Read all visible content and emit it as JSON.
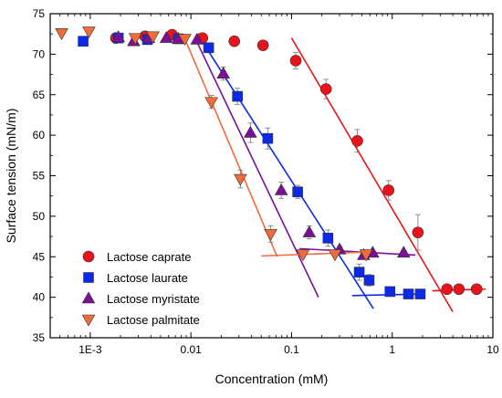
{
  "chart_data": {
    "type": "scatter",
    "xlabel": "Concentration (mM)",
    "ylabel": "Surface tension (mN/m)",
    "xscale": "log",
    "xlim": [
      0.0004,
      10
    ],
    "ylim": [
      35,
      75
    ],
    "x_ticks": [
      {
        "value": 0.001,
        "label": "1E-3"
      },
      {
        "value": 0.01,
        "label": "0.01"
      },
      {
        "value": 0.1,
        "label": "0.1"
      },
      {
        "value": 1,
        "label": "1"
      },
      {
        "value": 10,
        "label": "10"
      }
    ],
    "y_ticks": [
      35,
      40,
      45,
      50,
      55,
      60,
      65,
      70,
      75
    ],
    "legend_position": "bottom-left",
    "series": [
      {
        "name": "Lactose caprate",
        "marker": "circle",
        "color": "#e8131b",
        "points": [
          [
            0.0018,
            72.0
          ],
          [
            0.0035,
            72.2
          ],
          [
            0.0065,
            72.4
          ],
          [
            0.013,
            72.0
          ],
          [
            0.027,
            71.6
          ],
          [
            0.052,
            71.1
          ],
          [
            0.11,
            69.2
          ],
          [
            0.22,
            65.7
          ],
          [
            0.45,
            59.3
          ],
          [
            0.92,
            53.2
          ],
          [
            1.8,
            48.0
          ],
          [
            3.5,
            41.0
          ],
          [
            4.6,
            41.0
          ],
          [
            6.9,
            41.0
          ]
        ],
        "errors": [
          0.2,
          0.2,
          0.2,
          0.2,
          0.2,
          0.2,
          1.0,
          1.2,
          1.4,
          1.2,
          2.2,
          0.3,
          0.3,
          0.3
        ],
        "fit_lines": [
          {
            "x": [
              0.1,
              4.0
            ],
            "y": [
              72.0,
              38.2
            ]
          },
          {
            "x": [
              2.5,
              8.5
            ],
            "y": [
              40.8,
              41.0
            ]
          }
        ]
      },
      {
        "name": "Lactose laurate",
        "marker": "square",
        "color": "#0d29e8",
        "points": [
          [
            0.00085,
            71.6
          ],
          [
            0.0019,
            72.0
          ],
          [
            0.0037,
            71.8
          ],
          [
            0.0075,
            71.9
          ],
          [
            0.015,
            70.8
          ],
          [
            0.029,
            64.8
          ],
          [
            0.058,
            59.6
          ],
          [
            0.115,
            53.0
          ],
          [
            0.23,
            47.3
          ],
          [
            0.47,
            43.1
          ],
          [
            0.59,
            42.1
          ],
          [
            0.95,
            40.7
          ],
          [
            1.45,
            40.4
          ],
          [
            1.9,
            40.4
          ]
        ],
        "errors": [
          0.2,
          0.2,
          0.3,
          0.2,
          0.3,
          1.0,
          1.3,
          0.8,
          1.0,
          1.0,
          0.7,
          0.3,
          0.3,
          0.3
        ],
        "fit_lines": [
          {
            "x": [
              0.012,
              0.65
            ],
            "y": [
              72.2,
              38.6
            ]
          },
          {
            "x": [
              0.4,
              2.1
            ],
            "y": [
              40.2,
              40.4
            ]
          }
        ]
      },
      {
        "name": "Lactose myristate",
        "marker": "triangle-up",
        "color": "#7b0f96",
        "points": [
          [
            0.0019,
            72.1
          ],
          [
            0.0027,
            71.6
          ],
          [
            0.0038,
            72.0
          ],
          [
            0.0057,
            72.0
          ],
          [
            0.0075,
            71.9
          ],
          [
            0.0115,
            71.8
          ],
          [
            0.021,
            67.6
          ],
          [
            0.039,
            60.3
          ],
          [
            0.079,
            53.2
          ],
          [
            0.15,
            48.0
          ],
          [
            0.3,
            45.9
          ],
          [
            0.52,
            45.2
          ],
          [
            0.64,
            45.5
          ],
          [
            1.3,
            45.5
          ]
        ],
        "errors": [
          0.2,
          0.2,
          0.2,
          0.2,
          0.2,
          0.2,
          0.8,
          1.2,
          1.0,
          0.8,
          0.3,
          0.3,
          0.3,
          0.3
        ],
        "fit_lines": [
          {
            "x": [
              0.011,
              0.185
            ],
            "y": [
              72.0,
              40.0
            ]
          },
          {
            "x": [
              0.12,
              1.7
            ],
            "y": [
              46.0,
              45.2
            ]
          }
        ]
      },
      {
        "name": "Lactose palmitate",
        "marker": "triangle-down",
        "color": "#f26b3a",
        "points": [
          [
            0.00052,
            72.6
          ],
          [
            0.00097,
            72.8
          ],
          [
            0.0028,
            72.0
          ],
          [
            0.0042,
            72.2
          ],
          [
            0.0087,
            71.9
          ],
          [
            0.016,
            64.1
          ],
          [
            0.031,
            54.6
          ],
          [
            0.062,
            47.8
          ],
          [
            0.13,
            45.3
          ],
          [
            0.27,
            45.3
          ],
          [
            0.55,
            45.3
          ]
        ],
        "errors": [
          0.2,
          0.2,
          0.2,
          0.2,
          0.2,
          0.8,
          1.1,
          1.0,
          0.3,
          0.3,
          0.3
        ],
        "fit_lines": [
          {
            "x": [
              0.0085,
              0.072
            ],
            "y": [
              72.2,
              45.0
            ]
          },
          {
            "x": [
              0.05,
              0.6
            ],
            "y": [
              45.1,
              45.6
            ]
          }
        ]
      }
    ]
  }
}
